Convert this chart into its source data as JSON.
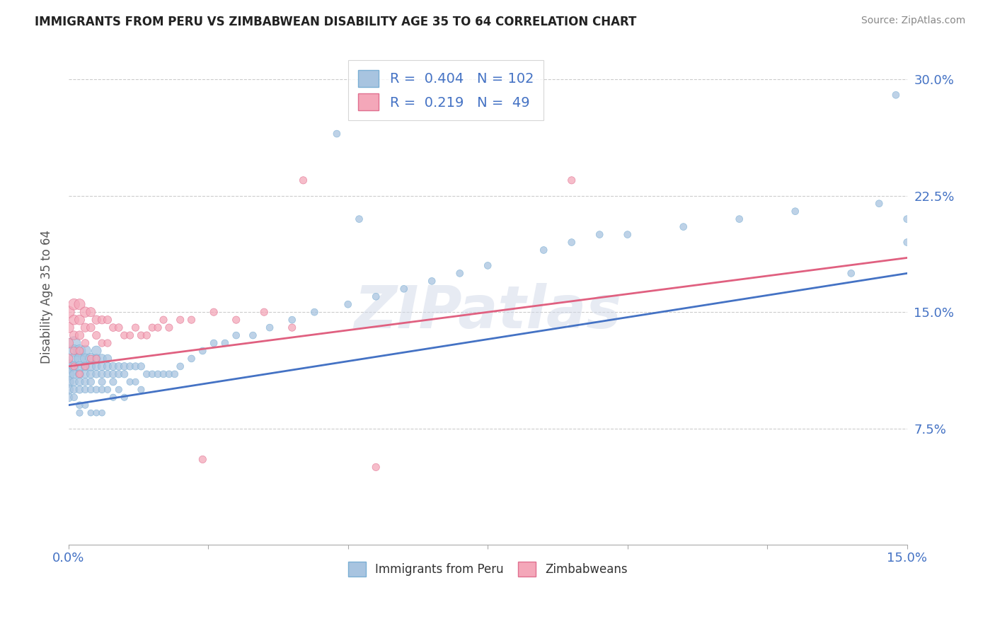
{
  "title": "IMMIGRANTS FROM PERU VS ZIMBABWEAN DISABILITY AGE 35 TO 64 CORRELATION CHART",
  "source": "Source: ZipAtlas.com",
  "ylabel": "Disability Age 35 to 64",
  "xlim": [
    0.0,
    0.15
  ],
  "ylim": [
    0.0,
    0.32
  ],
  "xticks": [
    0.0,
    0.025,
    0.05,
    0.075,
    0.1,
    0.125,
    0.15
  ],
  "xticklabels": [
    "0.0%",
    "",
    "",
    "",
    "",
    "",
    "15.0%"
  ],
  "ytick_positions": [
    0.075,
    0.15,
    0.225,
    0.3
  ],
  "yticklabels": [
    "7.5%",
    "15.0%",
    "22.5%",
    "30.0%"
  ],
  "peru_color": "#a8c4e0",
  "peru_edge": "#7bafd4",
  "zim_color": "#f4a7b9",
  "zim_edge": "#e07090",
  "R_peru": 0.404,
  "N_peru": 102,
  "R_zim": 0.219,
  "N_zim": 49,
  "line_peru_color": "#4472c4",
  "line_zim_color": "#e06080",
  "watermark": "ZIPatlas",
  "legend_peru": "Immigrants from Peru",
  "legend_zim": "Zimbabweans",
  "peru_x": [
    0.0,
    0.0,
    0.0,
    0.0,
    0.0,
    0.001,
    0.001,
    0.001,
    0.001,
    0.001,
    0.001,
    0.001,
    0.001,
    0.002,
    0.002,
    0.002,
    0.002,
    0.002,
    0.002,
    0.002,
    0.002,
    0.003,
    0.003,
    0.003,
    0.003,
    0.003,
    0.003,
    0.003,
    0.004,
    0.004,
    0.004,
    0.004,
    0.004,
    0.004,
    0.005,
    0.005,
    0.005,
    0.005,
    0.005,
    0.005,
    0.006,
    0.006,
    0.006,
    0.006,
    0.006,
    0.006,
    0.007,
    0.007,
    0.007,
    0.007,
    0.008,
    0.008,
    0.008,
    0.008,
    0.009,
    0.009,
    0.009,
    0.01,
    0.01,
    0.01,
    0.011,
    0.011,
    0.012,
    0.012,
    0.013,
    0.013,
    0.014,
    0.015,
    0.016,
    0.017,
    0.018,
    0.019,
    0.02,
    0.022,
    0.024,
    0.026,
    0.028,
    0.03,
    0.033,
    0.036,
    0.04,
    0.044,
    0.05,
    0.055,
    0.06,
    0.065,
    0.07,
    0.075,
    0.085,
    0.09,
    0.095,
    0.1,
    0.11,
    0.12,
    0.13,
    0.14,
    0.145,
    0.148,
    0.15,
    0.15,
    0.048,
    0.052
  ],
  "peru_y": [
    0.115,
    0.11,
    0.105,
    0.1,
    0.095,
    0.13,
    0.125,
    0.12,
    0.115,
    0.11,
    0.105,
    0.1,
    0.095,
    0.125,
    0.12,
    0.115,
    0.11,
    0.105,
    0.1,
    0.09,
    0.085,
    0.125,
    0.12,
    0.115,
    0.11,
    0.105,
    0.1,
    0.09,
    0.12,
    0.115,
    0.11,
    0.105,
    0.1,
    0.085,
    0.125,
    0.12,
    0.115,
    0.11,
    0.1,
    0.085,
    0.12,
    0.115,
    0.11,
    0.105,
    0.1,
    0.085,
    0.12,
    0.115,
    0.11,
    0.1,
    0.115,
    0.11,
    0.105,
    0.095,
    0.115,
    0.11,
    0.1,
    0.115,
    0.11,
    0.095,
    0.115,
    0.105,
    0.115,
    0.105,
    0.115,
    0.1,
    0.11,
    0.11,
    0.11,
    0.11,
    0.11,
    0.11,
    0.115,
    0.12,
    0.125,
    0.13,
    0.13,
    0.135,
    0.135,
    0.14,
    0.145,
    0.15,
    0.155,
    0.16,
    0.165,
    0.17,
    0.175,
    0.18,
    0.19,
    0.195,
    0.2,
    0.2,
    0.205,
    0.21,
    0.215,
    0.175,
    0.22,
    0.29,
    0.21,
    0.195,
    0.265,
    0.21
  ],
  "peru_size": [
    200,
    150,
    120,
    100,
    80,
    180,
    150,
    120,
    100,
    80,
    70,
    60,
    50,
    150,
    120,
    100,
    80,
    70,
    60,
    50,
    45,
    130,
    100,
    80,
    70,
    60,
    50,
    45,
    120,
    90,
    70,
    60,
    50,
    40,
    100,
    80,
    70,
    60,
    50,
    40,
    80,
    70,
    60,
    55,
    50,
    40,
    70,
    65,
    55,
    45,
    65,
    60,
    55,
    45,
    60,
    55,
    45,
    60,
    55,
    45,
    55,
    45,
    55,
    45,
    55,
    45,
    50,
    50,
    50,
    50,
    50,
    50,
    50,
    50,
    50,
    50,
    50,
    50,
    50,
    50,
    50,
    50,
    50,
    50,
    50,
    50,
    50,
    50,
    50,
    50,
    50,
    50,
    50,
    50,
    50,
    50,
    50,
    50,
    50,
    50,
    50,
    50
  ],
  "zim_x": [
    0.0,
    0.0,
    0.0,
    0.0,
    0.001,
    0.001,
    0.001,
    0.001,
    0.001,
    0.002,
    0.002,
    0.002,
    0.002,
    0.002,
    0.003,
    0.003,
    0.003,
    0.003,
    0.004,
    0.004,
    0.004,
    0.005,
    0.005,
    0.005,
    0.006,
    0.006,
    0.007,
    0.007,
    0.008,
    0.009,
    0.01,
    0.011,
    0.012,
    0.013,
    0.014,
    0.015,
    0.016,
    0.017,
    0.018,
    0.02,
    0.022,
    0.024,
    0.026,
    0.03,
    0.035,
    0.04,
    0.042,
    0.055,
    0.09
  ],
  "zim_y": [
    0.15,
    0.14,
    0.13,
    0.12,
    0.155,
    0.145,
    0.135,
    0.125,
    0.115,
    0.155,
    0.145,
    0.135,
    0.125,
    0.11,
    0.15,
    0.14,
    0.13,
    0.115,
    0.15,
    0.14,
    0.12,
    0.145,
    0.135,
    0.12,
    0.145,
    0.13,
    0.145,
    0.13,
    0.14,
    0.14,
    0.135,
    0.135,
    0.14,
    0.135,
    0.135,
    0.14,
    0.14,
    0.145,
    0.14,
    0.145,
    0.145,
    0.055,
    0.15,
    0.145,
    0.15,
    0.14,
    0.235,
    0.05,
    0.235
  ],
  "zim_size": [
    150,
    120,
    100,
    80,
    130,
    100,
    80,
    60,
    50,
    120,
    100,
    80,
    60,
    50,
    110,
    80,
    60,
    50,
    90,
    70,
    50,
    80,
    65,
    50,
    70,
    55,
    65,
    55,
    60,
    60,
    55,
    55,
    55,
    55,
    55,
    55,
    55,
    55,
    55,
    55,
    55,
    55,
    55,
    55,
    55,
    55,
    55,
    55,
    55
  ]
}
